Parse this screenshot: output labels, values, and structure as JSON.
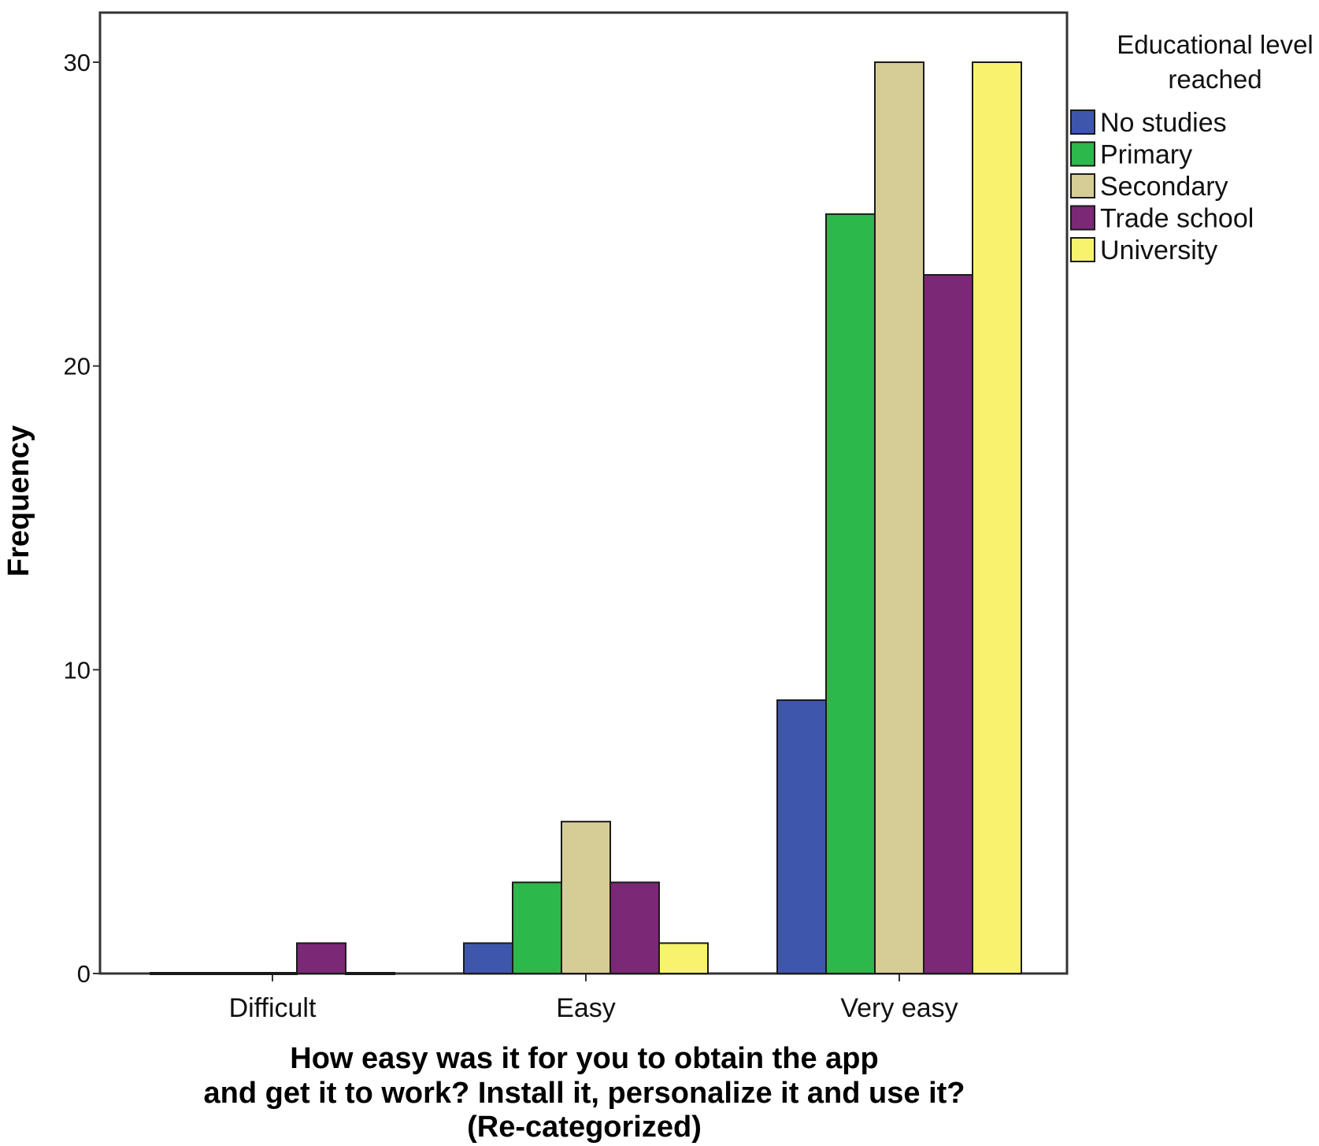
{
  "chart_data": {
    "type": "bar",
    "categories": [
      "Difficult",
      "Easy",
      "Very easy"
    ],
    "series": [
      {
        "name": "No studies",
        "color": "#3f56ad",
        "values": [
          0,
          1,
          9
        ]
      },
      {
        "name": "Primary",
        "color": "#2db84b",
        "values": [
          0,
          3,
          25
        ]
      },
      {
        "name": "Secondary",
        "color": "#d6cd96",
        "values": [
          0,
          5,
          30
        ]
      },
      {
        "name": "Trade school",
        "color": "#7b2876",
        "values": [
          1,
          3,
          23
        ]
      },
      {
        "name": "University",
        "color": "#f7f36d",
        "values": [
          0,
          1,
          30
        ]
      }
    ],
    "xlabel_lines": [
      "How easy was it for you to obtain the app",
      "and get it to work? Install it, personalize it and use it?",
      "(Re-categorized)"
    ],
    "ylabel": "Frequency",
    "yticks": [
      0,
      10,
      20,
      30
    ],
    "ylim": [
      0,
      30
    ],
    "legend": {
      "title_lines": [
        "Educational level",
        "reached"
      ],
      "position": "top-right"
    },
    "grid": false
  }
}
